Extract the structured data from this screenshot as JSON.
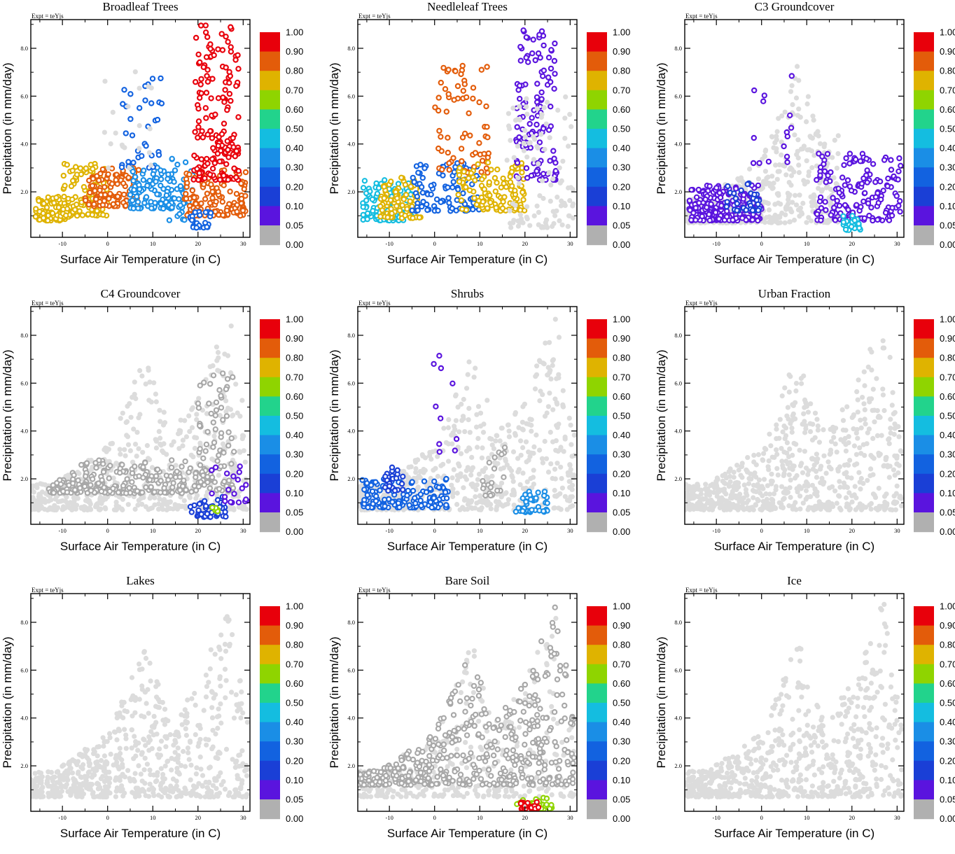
{
  "figure": {
    "expt_label": "Expt = teYjs",
    "xlabel": "Surface Air Temperature (in C)",
    "ylabel": "Precipitation (in mm/day)",
    "xlim": [
      -17,
      31.5
    ],
    "ylim": [
      0.1,
      9.2
    ],
    "x_ticks": [
      -10,
      0,
      10,
      20,
      30
    ],
    "y_ticks": [
      2.0,
      4.0,
      6.0,
      8.0
    ],
    "x_tick_labels": [
      "-10",
      "0",
      "10",
      "20",
      "30"
    ],
    "y_tick_labels": [
      "2.0",
      "4.0",
      "6.0",
      "8.0"
    ],
    "colorbar": {
      "labels": [
        "1.00",
        "0.90",
        "0.80",
        "0.70",
        "0.60",
        "0.50",
        "0.40",
        "0.30",
        "0.20",
        "0.10",
        "0.05",
        "0.00"
      ],
      "colors": [
        "#e8000b",
        "#e35c0a",
        "#dfb300",
        "#8fd400",
        "#22d38c",
        "#14bde0",
        "#1a8ee6",
        "#1262e0",
        "#1a3fd6",
        "#5a14de",
        "#b0b0b0"
      ]
    }
  },
  "chart_data": [
    {
      "type": "scatter",
      "title": "Broadleaf Trees",
      "xlabel": "Surface Air Temperature (in C)",
      "ylabel": "Precipitation (in mm/day)",
      "xlim": [
        -17,
        31.5
      ],
      "ylim": [
        0.1,
        9.2
      ],
      "colorbar_range": [
        0,
        1
      ],
      "clusters": [
        {
          "x": [
            -16,
            -8
          ],
          "y": [
            0.8,
            1.8
          ],
          "value": 0.7,
          "n": 90
        },
        {
          "x": [
            -10,
            0
          ],
          "y": [
            1.0,
            3.2
          ],
          "value": 0.7,
          "n": 110
        },
        {
          "x": [
            -5,
            7
          ],
          "y": [
            1.4,
            3.0
          ],
          "value": 0.8,
          "n": 120
        },
        {
          "x": [
            5,
            15
          ],
          "y": [
            1.3,
            3.2
          ],
          "value": 0.3,
          "n": 100
        },
        {
          "x": [
            3,
            12
          ],
          "y": [
            3.0,
            7.0
          ],
          "value": 0.2,
          "n": 35
        },
        {
          "x": [
            13,
            19
          ],
          "y": [
            0.8,
            3.5
          ],
          "value": 0.3,
          "n": 40
        },
        {
          "x": [
            17,
            31
          ],
          "y": [
            1.0,
            3.0
          ],
          "value": 0.8,
          "n": 130
        },
        {
          "x": [
            19,
            29
          ],
          "y": [
            2.5,
            9.0
          ],
          "value": 1.0,
          "n": 180
        },
        {
          "x": [
            18,
            23
          ],
          "y": [
            0.5,
            1.2
          ],
          "value": 0.2,
          "n": 25
        },
        {
          "x": [
            -1,
            10
          ],
          "y": [
            3.0,
            7.5
          ],
          "value": 0.0,
          "n": 20
        }
      ]
    },
    {
      "type": "scatter",
      "title": "Needleleaf Trees",
      "xlabel": "Surface Air Temperature (in C)",
      "ylabel": "Precipitation (in mm/day)",
      "xlim": [
        -17,
        31.5
      ],
      "ylim": [
        0.1,
        9.2
      ],
      "colorbar_range": [
        0,
        1
      ],
      "clusters": [
        {
          "x": [
            -16,
            -5
          ],
          "y": [
            0.8,
            2.5
          ],
          "value": 0.4,
          "n": 110
        },
        {
          "x": [
            -12,
            -3
          ],
          "y": [
            0.9,
            2.6
          ],
          "value": 0.7,
          "n": 90
        },
        {
          "x": [
            -5,
            10
          ],
          "y": [
            1.2,
            3.2
          ],
          "value": 0.2,
          "n": 100
        },
        {
          "x": [
            0,
            12
          ],
          "y": [
            2.8,
            7.3
          ],
          "value": 0.8,
          "n": 70
        },
        {
          "x": [
            5,
            20
          ],
          "y": [
            1.2,
            3.3
          ],
          "value": 0.7,
          "n": 120
        },
        {
          "x": [
            18,
            27
          ],
          "y": [
            2.5,
            8.8
          ],
          "value": 0.05,
          "n": 120
        },
        {
          "x": [
            16,
            31
          ],
          "y": [
            0.5,
            6.0
          ],
          "value": 0.0,
          "n": 110
        }
      ]
    },
    {
      "type": "scatter",
      "title": "C3 Groundcover",
      "xlabel": "Surface Air Temperature (in C)",
      "ylabel": "Precipitation (in mm/day)",
      "xlim": [
        -17,
        31.5
      ],
      "ylim": [
        0.1,
        9.2
      ],
      "colorbar_range": [
        0,
        1
      ],
      "clusters": [
        {
          "x": [
            -17,
            17
          ],
          "y": [
            0.1,
            9.2
          ],
          "value": 0.0,
          "n": 520
        },
        {
          "x": [
            -16,
            0
          ],
          "y": [
            0.8,
            2.3
          ],
          "value": 0.05,
          "n": 200
        },
        {
          "x": [
            -8,
            0
          ],
          "y": [
            1.2,
            2.5
          ],
          "value": 0.1,
          "n": 30
        },
        {
          "x": [
            -2,
            7
          ],
          "y": [
            3.2,
            7.5
          ],
          "value": 0.05,
          "n": 15
        },
        {
          "x": [
            12,
            31
          ],
          "y": [
            0.8,
            3.6
          ],
          "value": 0.05,
          "n": 160
        },
        {
          "x": [
            18,
            22
          ],
          "y": [
            0.4,
            1.0
          ],
          "value": 0.4,
          "n": 25
        }
      ]
    },
    {
      "type": "scatter",
      "title": "C4 Groundcover",
      "xlabel": "Surface Air Temperature (in C)",
      "ylabel": "Precipitation (in mm/day)",
      "xlim": [
        -17,
        31.5
      ],
      "ylim": [
        0.1,
        9.2
      ],
      "colorbar_range": [
        0,
        1
      ],
      "clusters": [
        {
          "x": [
            -17,
            31
          ],
          "y": [
            0.1,
            9.2
          ],
          "value": 0.0,
          "n": 600
        },
        {
          "x": [
            -13,
            20
          ],
          "y": [
            0.8,
            2.8
          ],
          "value": 0.01,
          "n": 220
        },
        {
          "x": [
            20,
            28
          ],
          "y": [
            1.5,
            6.5
          ],
          "value": 0.01,
          "n": 90
        },
        {
          "x": [
            18,
            27
          ],
          "y": [
            0.4,
            1.3
          ],
          "value": 0.1,
          "n": 40
        },
        {
          "x": [
            22,
            31
          ],
          "y": [
            1.0,
            2.6
          ],
          "value": 0.05,
          "n": 20
        },
        {
          "x": [
            23,
            26
          ],
          "y": [
            0.6,
            1.0
          ],
          "value": 0.65,
          "n": 6
        }
      ]
    },
    {
      "type": "scatter",
      "title": "Shrubs",
      "xlabel": "Surface Air Temperature (in C)",
      "ylabel": "Precipitation (in mm/day)",
      "xlim": [
        -17,
        31.5
      ],
      "ylim": [
        0.1,
        9.2
      ],
      "colorbar_range": [
        0,
        1
      ],
      "clusters": [
        {
          "x": [
            -17,
            31
          ],
          "y": [
            0.1,
            9.2
          ],
          "value": 0.0,
          "n": 620
        },
        {
          "x": [
            -16,
            3
          ],
          "y": [
            0.8,
            2.0
          ],
          "value": 0.2,
          "n": 140
        },
        {
          "x": [
            -11,
            -7
          ],
          "y": [
            1.5,
            2.5
          ],
          "value": 0.1,
          "n": 25
        },
        {
          "x": [
            -1,
            5
          ],
          "y": [
            3.0,
            7.5
          ],
          "value": 0.05,
          "n": 10
        },
        {
          "x": [
            18,
            25
          ],
          "y": [
            0.6,
            1.5
          ],
          "value": 0.3,
          "n": 40
        },
        {
          "x": [
            10,
            16
          ],
          "y": [
            1.3,
            3.5
          ],
          "value": 0.01,
          "n": 20
        }
      ]
    },
    {
      "type": "scatter",
      "title": "Urban Fraction",
      "xlabel": "Surface Air Temperature (in C)",
      "ylabel": "Precipitation (in mm/day)",
      "xlim": [
        -17,
        31.5
      ],
      "ylim": [
        0.1,
        9.2
      ],
      "colorbar_range": [
        0,
        1
      ],
      "clusters": [
        {
          "x": [
            -17,
            31
          ],
          "y": [
            0.1,
            9.2
          ],
          "value": 0.0,
          "n": 700
        }
      ]
    },
    {
      "type": "scatter",
      "title": "Lakes",
      "xlabel": "Surface Air Temperature (in C)",
      "ylabel": "Precipitation (in mm/day)",
      "xlim": [
        -17,
        31.5
      ],
      "ylim": [
        0.1,
        9.2
      ],
      "colorbar_range": [
        0,
        1
      ],
      "clusters": [
        {
          "x": [
            -17,
            31
          ],
          "y": [
            0.1,
            9.2
          ],
          "value": 0.0,
          "n": 700
        }
      ]
    },
    {
      "type": "scatter",
      "title": "Bare Soil",
      "xlabel": "Surface Air Temperature (in C)",
      "ylabel": "Precipitation (in mm/day)",
      "xlim": [
        -17,
        31.5
      ],
      "ylim": [
        0.1,
        9.2
      ],
      "colorbar_range": [
        0,
        1
      ],
      "clusters": [
        {
          "x": [
            -17,
            31
          ],
          "y": [
            0.1,
            9.2
          ],
          "value": 0.0,
          "n": 350
        },
        {
          "x": [
            -17,
            31
          ],
          "y": [
            0.6,
            9.0
          ],
          "value": 0.01,
          "n": 480
        },
        {
          "x": [
            18,
            26
          ],
          "y": [
            0.2,
            0.8
          ],
          "value": 0.6,
          "n": 40
        },
        {
          "x": [
            19,
            23
          ],
          "y": [
            0.2,
            0.5
          ],
          "value": 1.0,
          "n": 25
        }
      ]
    },
    {
      "type": "scatter",
      "title": "Ice",
      "xlabel": "Surface Air Temperature (in C)",
      "ylabel": "Precipitation (in mm/day)",
      "xlim": [
        -17,
        31.5
      ],
      "ylim": [
        0.1,
        9.2
      ],
      "colorbar_range": [
        0,
        1
      ],
      "clusters": [
        {
          "x": [
            -17,
            31
          ],
          "y": [
            0.1,
            9.2
          ],
          "value": 0.0,
          "n": 700
        }
      ]
    }
  ]
}
